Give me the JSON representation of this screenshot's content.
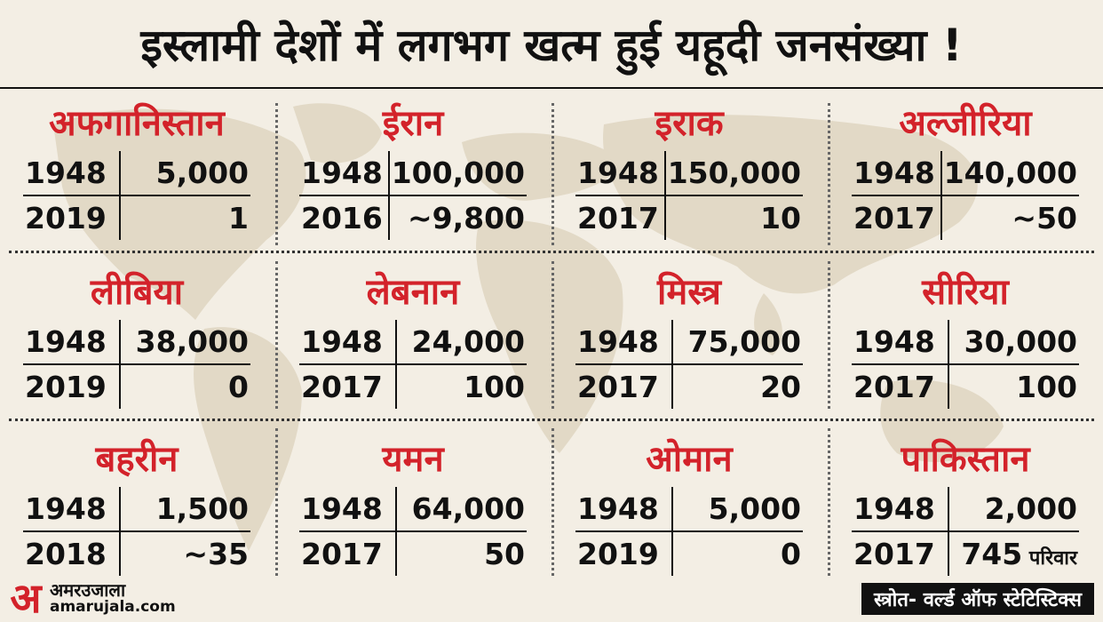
{
  "title": "इस्लामी देशों में लगभग खत्म हुई यहूदी जनसंख्या !",
  "countries": [
    {
      "name": "अफगानिस्तान",
      "rows": [
        {
          "year": "1948",
          "value": "5,000"
        },
        {
          "year": "2019",
          "value": "1"
        }
      ]
    },
    {
      "name": "ईरान",
      "rows": [
        {
          "year": "1948",
          "value": "100,000"
        },
        {
          "year": "2016",
          "value": "~9,800"
        }
      ]
    },
    {
      "name": "इराक",
      "rows": [
        {
          "year": "1948",
          "value": "150,000"
        },
        {
          "year": "2017",
          "value": "10"
        }
      ]
    },
    {
      "name": "अल्जीरिया",
      "rows": [
        {
          "year": "1948",
          "value": "140,000"
        },
        {
          "year": "2017",
          "value": "~50"
        }
      ]
    },
    {
      "name": "लीबिया",
      "rows": [
        {
          "year": "1948",
          "value": "38,000"
        },
        {
          "year": "2019",
          "value": "0"
        }
      ]
    },
    {
      "name": "लेबनान",
      "rows": [
        {
          "year": "1948",
          "value": "24,000"
        },
        {
          "year": "2017",
          "value": "100"
        }
      ]
    },
    {
      "name": "मिस्त्र",
      "rows": [
        {
          "year": "1948",
          "value": "75,000"
        },
        {
          "year": "2017",
          "value": "20"
        }
      ]
    },
    {
      "name": "सीरिया",
      "rows": [
        {
          "year": "1948",
          "value": "30,000"
        },
        {
          "year": "2017",
          "value": "100"
        }
      ]
    },
    {
      "name": "बहरीन",
      "rows": [
        {
          "year": "1948",
          "value": "1,500"
        },
        {
          "year": "2018",
          "value": "~35"
        }
      ]
    },
    {
      "name": "यमन",
      "rows": [
        {
          "year": "1948",
          "value": "64,000"
        },
        {
          "year": "2017",
          "value": "50"
        }
      ]
    },
    {
      "name": "ओमान",
      "rows": [
        {
          "year": "1948",
          "value": "5,000"
        },
        {
          "year": "2019",
          "value": "0"
        }
      ]
    },
    {
      "name": "पाकिस्तान",
      "rows": [
        {
          "year": "1948",
          "value": "2,000"
        },
        {
          "year": "2017",
          "value": "745",
          "unit": " परिवार"
        }
      ]
    }
  ],
  "logo": {
    "mark": "अ",
    "hindi": "अमरउजाला",
    "url": "amarujala.com"
  },
  "source": "स्त्रोत- वर्ल्ड ऑफ स्टेटिस्टिक्स",
  "colors": {
    "accent": "#d3222a",
    "background": "#f3eee4",
    "map": "#e2d9c6"
  }
}
